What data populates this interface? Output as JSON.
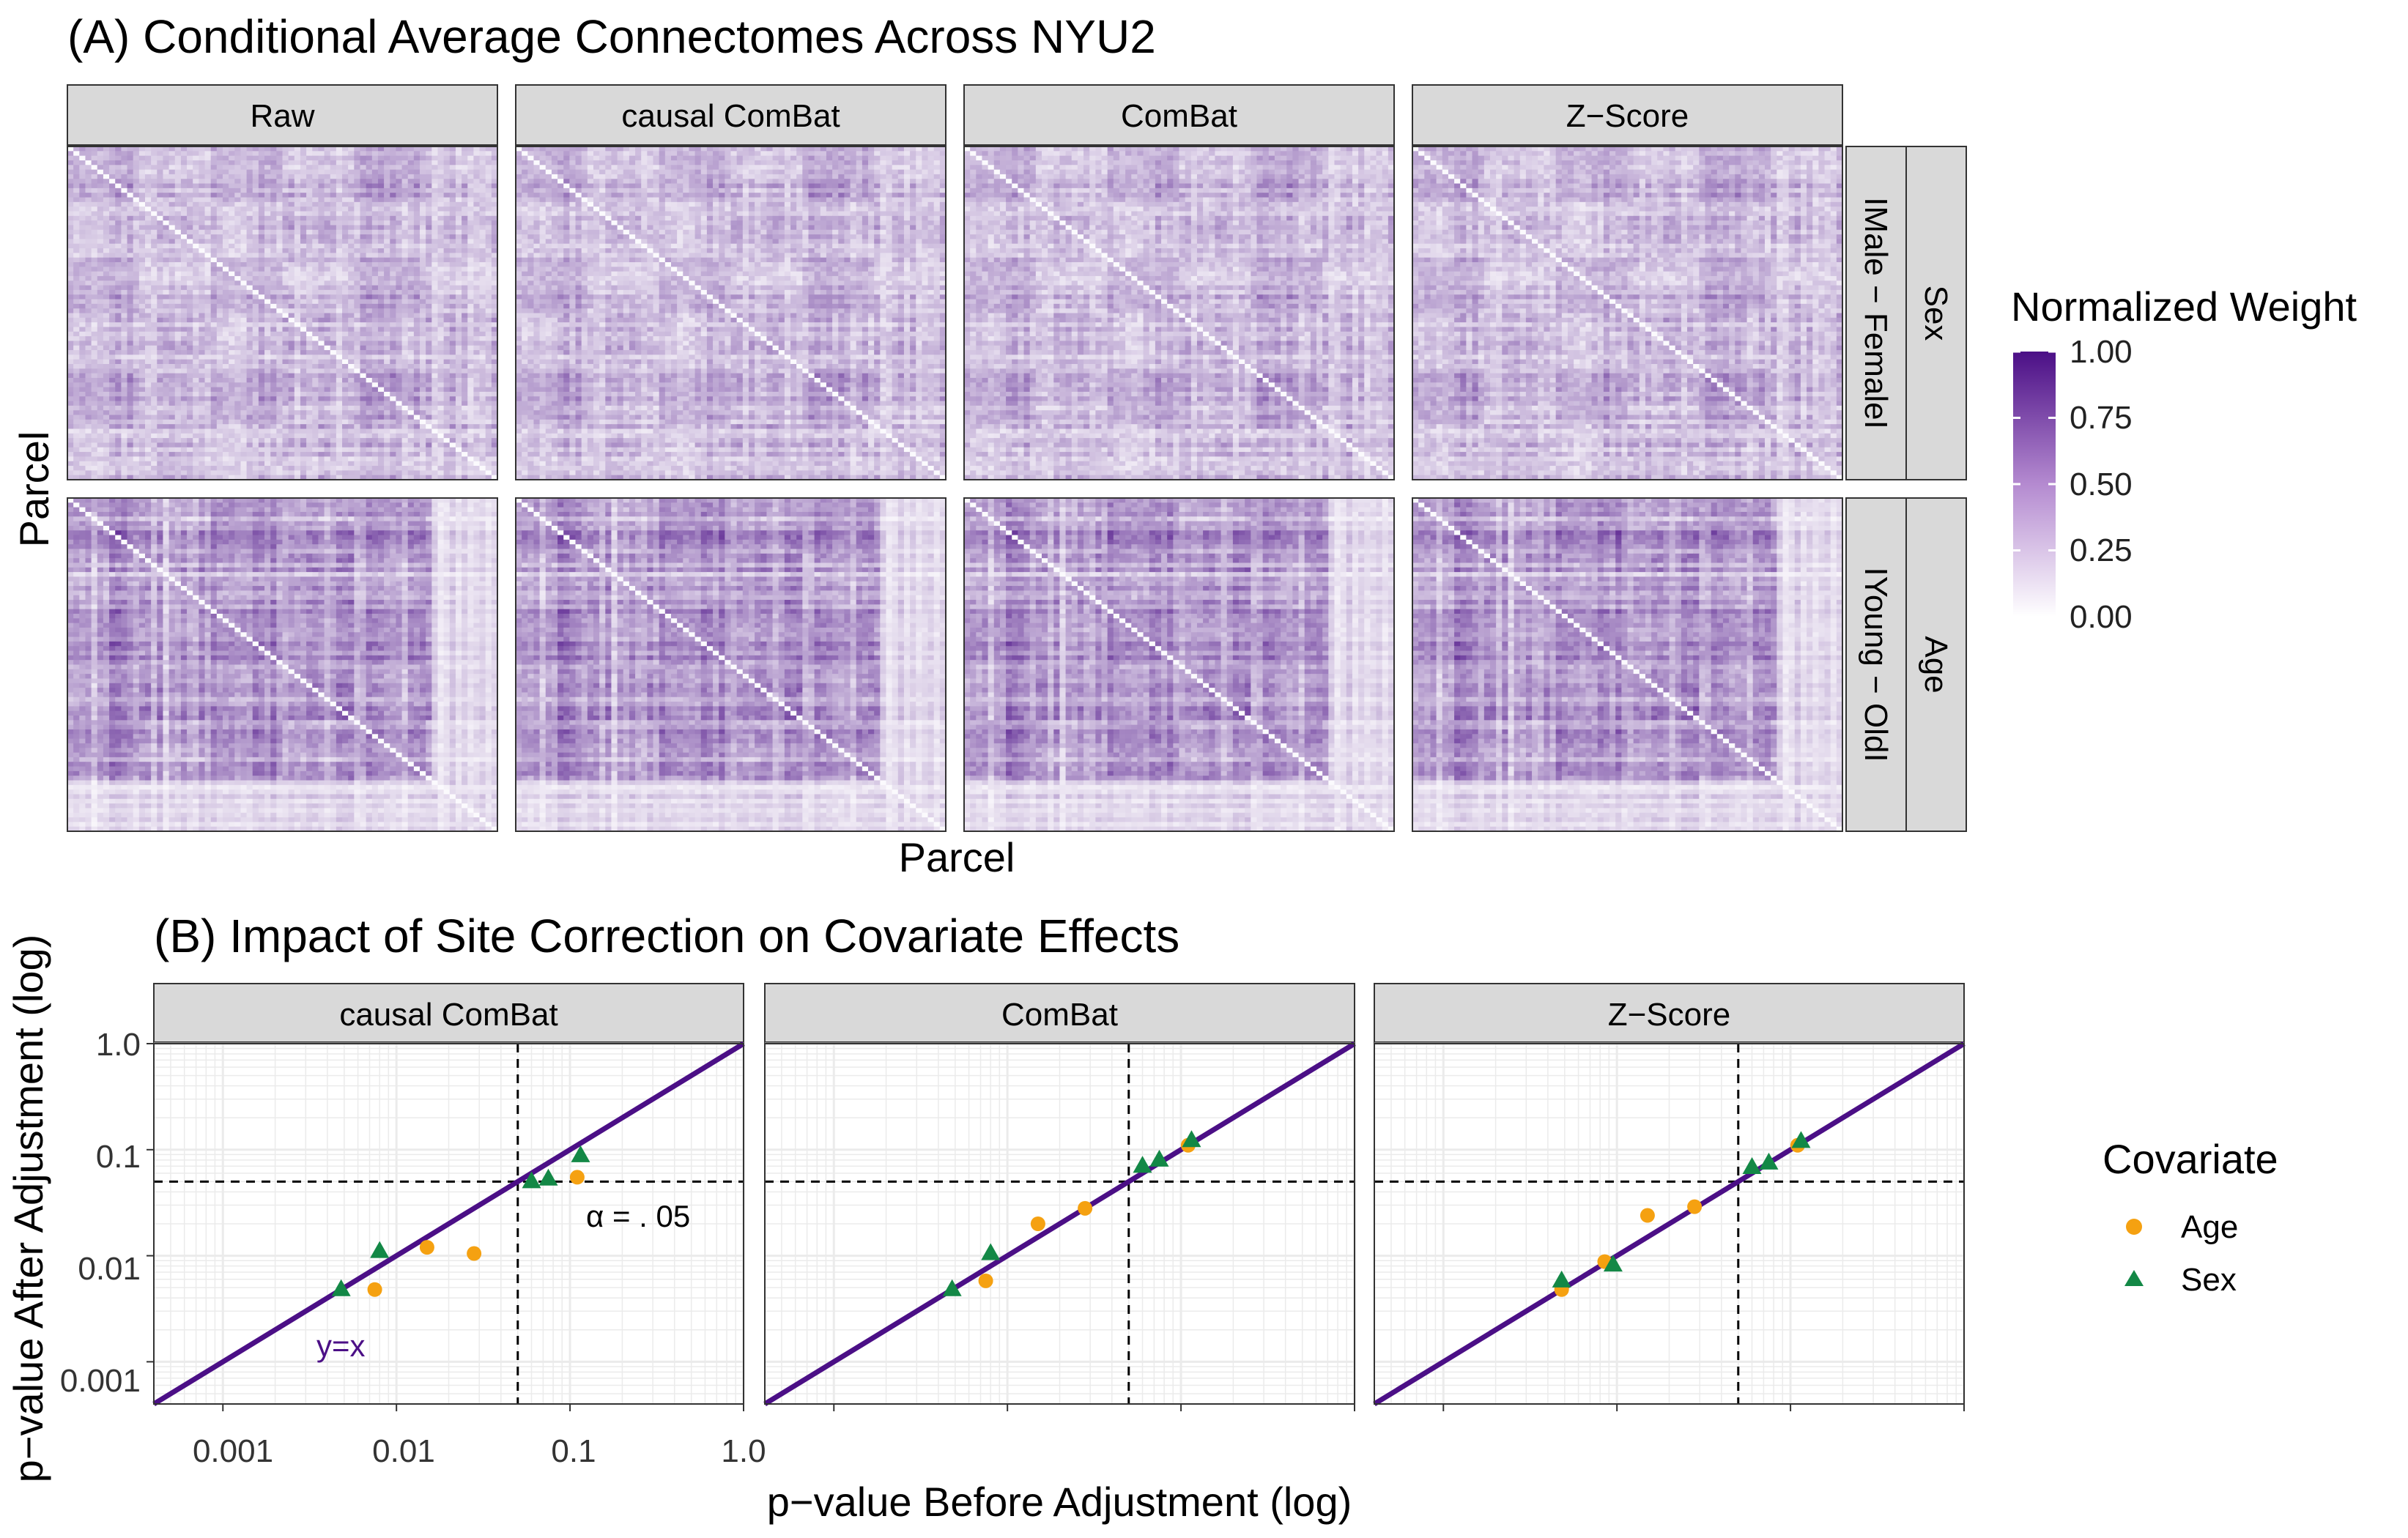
{
  "panel_a": {
    "title": "(A) Conditional Average Connectomes Across NYU2",
    "xlabel": "Parcel",
    "ylabel": "Parcel",
    "columns": [
      "Raw",
      "causal ComBat",
      "ComBat",
      "Z−Score"
    ],
    "rows": [
      {
        "inner": "IMale − FemaleI",
        "outer": "Sex"
      },
      {
        "inner": "IYoung − OldI",
        "outer": "Age"
      }
    ],
    "legend": {
      "title": "Normalized Weight",
      "ticks": [
        "1.00",
        "0.75",
        "0.50",
        "0.25",
        "0.00"
      ],
      "color_low": "#ffffff",
      "color_high": "#4b0f86"
    }
  },
  "panel_b": {
    "title": "(B) Impact of Site Correction on Covariate Effects",
    "xlabel": "p−value Before Adjustment (log)",
    "ylabel": "p−value After Adjustment (log)",
    "x_ticks": [
      "0.001",
      "0.01",
      "0.1",
      "1.0"
    ],
    "y_ticks": [
      "1.0",
      "0.1",
      "0.01",
      "0.001"
    ],
    "alpha_label": "α = . 05",
    "identity_label": "y=x",
    "legend": {
      "title": "Covariate",
      "items": [
        {
          "label": "Age",
          "color": "#f5a111",
          "shape": "circle"
        },
        {
          "label": "Sex",
          "color": "#138846",
          "shape": "triangle"
        }
      ]
    }
  },
  "chart_data": [
    {
      "type": "heatmap",
      "title": "(A) Conditional Average Connectomes Across NYU2",
      "xlabel": "Parcel",
      "ylabel": "Parcel",
      "facet_columns": [
        "Raw",
        "causal ComBat",
        "ComBat",
        "Z−Score"
      ],
      "facet_rows": [
        "Sex: IMale − FemaleI",
        "Age: IYoung − OldI"
      ],
      "value_range": [
        0,
        1
      ],
      "legend_title": "Normalized Weight"
    },
    {
      "type": "scatter",
      "title": "(B) Impact of Site Correction on Covariate Effects",
      "xlabel": "p−value Before Adjustment (log)",
      "ylabel": "p−value After Adjustment (log)",
      "xscale": "log10",
      "yscale": "log10",
      "xlim": [
        0.0004,
        1.0
      ],
      "ylim": [
        0.0004,
        1.0
      ],
      "reference_lines": {
        "identity": "y=x",
        "x": 0.05,
        "y": 0.05
      },
      "legend_title": "Covariate",
      "legend_position": "right",
      "panels": [
        {
          "facet": "causal ComBat",
          "series": [
            {
              "name": "Age",
              "points": [
                [
                  0.0075,
                  0.0048
                ],
                [
                  0.015,
                  0.012
                ],
                [
                  0.028,
                  0.0105
                ],
                [
                  0.11,
                  0.055
                ]
              ]
            },
            {
              "name": "Sex",
              "points": [
                [
                  0.0048,
                  0.0048
                ],
                [
                  0.008,
                  0.011
                ],
                [
                  0.06,
                  0.05
                ],
                [
                  0.075,
                  0.053
                ],
                [
                  0.115,
                  0.088
                ]
              ]
            }
          ]
        },
        {
          "facet": "ComBat",
          "series": [
            {
              "name": "Age",
              "points": [
                [
                  0.0075,
                  0.0058
                ],
                [
                  0.015,
                  0.02
                ],
                [
                  0.028,
                  0.028
                ],
                [
                  0.11,
                  0.11
                ]
              ]
            },
            {
              "name": "Sex",
              "points": [
                [
                  0.0048,
                  0.0048
                ],
                [
                  0.008,
                  0.0105
                ],
                [
                  0.06,
                  0.07
                ],
                [
                  0.075,
                  0.08
                ],
                [
                  0.115,
                  0.122
                ]
              ]
            }
          ]
        },
        {
          "facet": "Z−Score",
          "series": [
            {
              "name": "Age",
              "points": [
                [
                  0.0048,
                  0.0048
                ],
                [
                  0.0085,
                  0.0088
                ],
                [
                  0.015,
                  0.024
                ],
                [
                  0.028,
                  0.029
                ],
                [
                  0.11,
                  0.11
                ]
              ]
            },
            {
              "name": "Sex",
              "points": [
                [
                  0.0048,
                  0.0058
                ],
                [
                  0.0095,
                  0.0082
                ],
                [
                  0.06,
                  0.068
                ],
                [
                  0.075,
                  0.075
                ],
                [
                  0.115,
                  0.12
                ]
              ]
            }
          ]
        }
      ]
    }
  ]
}
